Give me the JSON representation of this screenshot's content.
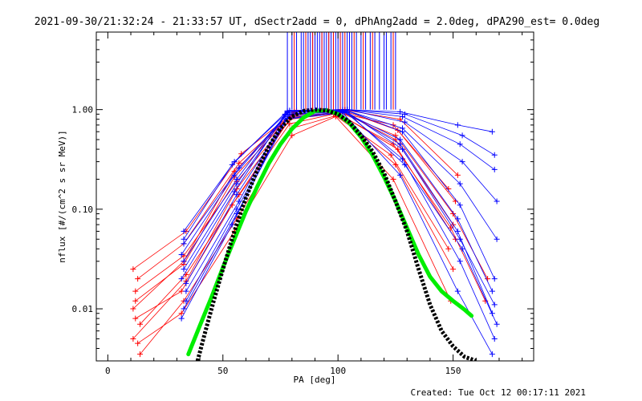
{
  "chart_data": {
    "type": "line",
    "title": "2021-09-30/21:32:24 - 21:33:57 UT, dSectr2add = 0, dPhAng2add = 2.0deg, dPA290_est=  0.0deg",
    "xlabel": "PA [deg]",
    "ylabel": "nflux [#/(cm^2 s sr MeV)]",
    "xlim": [
      -5,
      185
    ],
    "ylim": [
      0.003,
      6.0
    ],
    "yscale": "log",
    "xticks": [
      0,
      50,
      100,
      150
    ],
    "xtick_labels": [
      "0",
      "50",
      "100",
      "150"
    ],
    "yticks": [
      0.01,
      0.1,
      1.0
    ],
    "ytick_labels": [
      "0.01",
      "0.10",
      "1.00"
    ],
    "grid": false,
    "legend": "none",
    "colors": {
      "sector_a": "#0000ff",
      "sector_b": "#ff0000",
      "fit_green": "#00ee00",
      "fit_black": "#000000"
    },
    "series": [
      {
        "color": "sector_b",
        "style": "line+plus",
        "x": [
          12,
          33,
          55,
          80,
          100,
          125,
          150,
          165
        ],
        "y": [
          0.012,
          0.028,
          0.21,
          0.9,
          0.95,
          0.55,
          0.09,
          0.02
        ]
      },
      {
        "color": "sector_b",
        "style": "line+plus",
        "x": [
          11,
          34,
          56,
          80,
          99,
          124,
          149,
          164
        ],
        "y": [
          0.005,
          0.019,
          0.16,
          0.84,
          0.93,
          0.45,
          0.065,
          0.012
        ]
      },
      {
        "color": "sector_b",
        "style": "line+plus",
        "x": [
          13,
          33,
          57,
          81,
          101,
          126,
          151
        ],
        "y": [
          0.02,
          0.045,
          0.29,
          0.95,
          1.0,
          0.62,
          0.12
        ]
      },
      {
        "color": "sector_b",
        "style": "line+plus",
        "x": [
          12,
          32,
          54,
          79,
          98,
          123,
          148
        ],
        "y": [
          0.008,
          0.015,
          0.11,
          0.72,
          0.9,
          0.35,
          0.04
        ]
      },
      {
        "color": "sector_b",
        "style": "line+plus",
        "x": [
          14,
          33,
          56,
          80,
          100,
          125,
          150
        ],
        "y": [
          0.0035,
          0.012,
          0.08,
          0.65,
          0.88,
          0.28,
          0.025
        ]
      },
      {
        "color": "sector_b",
        "style": "line+plus",
        "x": [
          11,
          34,
          58,
          82,
          102,
          127,
          152
        ],
        "y": [
          0.025,
          0.06,
          0.36,
          0.98,
          1.0,
          0.8,
          0.22
        ]
      },
      {
        "color": "sector_b",
        "style": "line+plus",
        "x": [
          13,
          32,
          55,
          80,
          99,
          124,
          149
        ],
        "y": [
          0.0045,
          0.009,
          0.06,
          0.55,
          0.85,
          0.2,
          0.012
        ]
      },
      {
        "color": "sector_b",
        "style": "line+plus",
        "x": [
          12,
          33,
          56,
          81,
          101,
          125,
          150
        ],
        "y": [
          0.015,
          0.034,
          0.19,
          0.88,
          0.97,
          0.5,
          0.07
        ]
      },
      {
        "color": "sector_b",
        "style": "line+plus",
        "x": [
          14,
          34,
          57,
          79,
          100,
          126,
          151
        ],
        "y": [
          0.007,
          0.022,
          0.14,
          0.8,
          0.92,
          0.4,
          0.05
        ]
      },
      {
        "color": "sector_b",
        "style": "line+plus",
        "x": [
          11,
          33,
          55,
          80,
          98,
          124,
          148
        ],
        "y": [
          0.01,
          0.03,
          0.24,
          0.9,
          0.96,
          0.7,
          0.16
        ]
      },
      {
        "color": "sector_a",
        "style": "line+plus",
        "x": [
          33,
          56,
          78,
          103,
          128,
          153,
          168
        ],
        "y": [
          0.03,
          0.2,
          0.95,
          0.99,
          0.6,
          0.11,
          0.02
        ]
      },
      {
        "color": "sector_a",
        "style": "line+plus",
        "x": [
          32,
          55,
          77,
          102,
          127,
          152,
          167
        ],
        "y": [
          0.02,
          0.15,
          0.9,
          0.97,
          0.45,
          0.06,
          0.009
        ]
      },
      {
        "color": "sector_a",
        "style": "line+plus",
        "x": [
          33,
          57,
          79,
          104,
          129,
          154,
          169
        ],
        "y": [
          0.045,
          0.26,
          0.97,
          1.0,
          0.75,
          0.3,
          0.12
        ]
      },
      {
        "color": "sector_a",
        "style": "line+plus",
        "x": [
          34,
          56,
          78,
          103,
          128,
          153,
          168
        ],
        "y": [
          0.012,
          0.1,
          0.85,
          0.95,
          0.32,
          0.03,
          0.005
        ]
      },
      {
        "color": "sector_a",
        "style": "line+plus",
        "x": [
          32,
          54,
          77,
          102,
          127,
          152,
          167
        ],
        "y": [
          0.008,
          0.07,
          0.8,
          0.93,
          0.22,
          0.015,
          0.0035
        ]
      },
      {
        "color": "sector_a",
        "style": "line+plus",
        "x": [
          33,
          55,
          79,
          104,
          129,
          154,
          168
        ],
        "y": [
          0.06,
          0.3,
          0.98,
          1.0,
          0.9,
          0.55,
          0.35
        ]
      },
      {
        "color": "sector_a",
        "style": "line+plus",
        "x": [
          33,
          56,
          78,
          103,
          128,
          153,
          169
        ],
        "y": [
          0.025,
          0.18,
          0.93,
          0.99,
          0.65,
          0.18,
          0.05
        ]
      },
      {
        "color": "sector_a",
        "style": "line+plus",
        "x": [
          34,
          57,
          77,
          102,
          127,
          152,
          167
        ],
        "y": [
          0.015,
          0.12,
          0.88,
          0.96,
          0.5,
          0.08,
          0.015
        ]
      },
      {
        "color": "sector_a",
        "style": "line+plus",
        "x": [
          32,
          55,
          79,
          103,
          128,
          153,
          168
        ],
        "y": [
          0.035,
          0.22,
          0.96,
          1.0,
          0.85,
          0.45,
          0.25
        ]
      },
      {
        "color": "sector_a",
        "style": "line+plus",
        "x": [
          33,
          56,
          78,
          104,
          129,
          154,
          169
        ],
        "y": [
          0.01,
          0.09,
          0.82,
          0.94,
          0.28,
          0.04,
          0.007
        ]
      },
      {
        "color": "sector_a",
        "style": "line+plus",
        "x": [
          33,
          54,
          78,
          102,
          127,
          152,
          167
        ],
        "y": [
          0.05,
          0.28,
          0.97,
          1.0,
          0.95,
          0.7,
          0.6
        ]
      },
      {
        "color": "sector_a",
        "style": "line+plus",
        "x": [
          34,
          56,
          79,
          103,
          128,
          153,
          168
        ],
        "y": [
          0.018,
          0.14,
          0.9,
          0.98,
          0.4,
          0.05,
          0.011
        ]
      },
      {
        "color": "fit_green",
        "style": "thick-line",
        "x": [
          35,
          40,
          45,
          50,
          55,
          60,
          65,
          70,
          75,
          80,
          85,
          90,
          95,
          100,
          105,
          110,
          115,
          120,
          125,
          130,
          135,
          140,
          145,
          150,
          155,
          158
        ],
        "y": [
          0.0035,
          0.0068,
          0.013,
          0.026,
          0.05,
          0.095,
          0.17,
          0.29,
          0.45,
          0.64,
          0.83,
          0.97,
          0.99,
          0.9,
          0.73,
          0.53,
          0.35,
          0.21,
          0.12,
          0.065,
          0.035,
          0.021,
          0.015,
          0.012,
          0.0098,
          0.0085
        ]
      },
      {
        "color": "fit_black",
        "style": "thick-dotted",
        "x": [
          39,
          42,
          46,
          50,
          55,
          60,
          65,
          70,
          75,
          80,
          85,
          90,
          95,
          100,
          105,
          110,
          115,
          120,
          125,
          130,
          135,
          140,
          145,
          150,
          155,
          160
        ],
        "y": [
          0.003,
          0.0055,
          0.012,
          0.025,
          0.06,
          0.13,
          0.25,
          0.43,
          0.65,
          0.85,
          0.97,
          1.0,
          0.98,
          0.9,
          0.75,
          0.55,
          0.38,
          0.23,
          0.12,
          0.06,
          0.025,
          0.011,
          0.006,
          0.0042,
          0.0033,
          0.003
        ]
      }
    ],
    "spikes": {
      "x_blue": [
        78,
        80,
        82,
        84,
        85,
        86,
        87,
        88,
        89,
        90,
        91,
        92,
        93,
        94,
        95,
        96,
        97,
        98,
        99,
        100,
        101,
        102,
        104,
        105,
        106,
        108,
        110,
        112,
        114,
        116,
        118,
        120,
        121,
        123,
        125
      ],
      "x_red": [
        81,
        86,
        89,
        93,
        96,
        98,
        101,
        103,
        107,
        111,
        115,
        124
      ],
      "y_top": 6.0
    }
  },
  "footer": {
    "created": "Created: Tue Oct 12 00:17:11 2021"
  }
}
